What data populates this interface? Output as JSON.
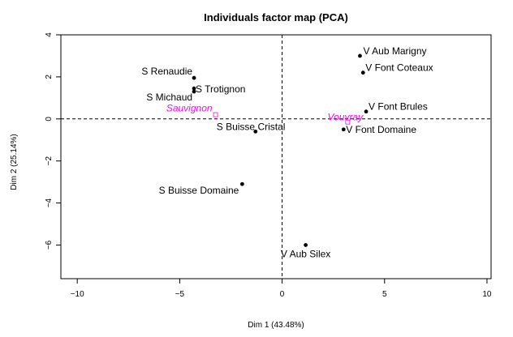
{
  "chart_data": {
    "type": "scatter",
    "title": "Individuals factor map (PCA)",
    "xlabel": "Dim 1 (43.48%)",
    "ylabel": "Dim 2 (25.14%)",
    "xlim": [
      -10.8,
      10.2
    ],
    "ylim": [
      -7.6,
      4.0
    ],
    "xticks": [
      -10,
      -5,
      0,
      5,
      10
    ],
    "yticks": [
      -6,
      -4,
      -2,
      0,
      2,
      4
    ],
    "xtick_labels": [
      "−10",
      "−5",
      "0",
      "5",
      "10"
    ],
    "ytick_labels": [
      "−6",
      "−4",
      "−2",
      "0",
      "2",
      "4"
    ],
    "grid": false,
    "reference_lines": [
      {
        "axis": "x",
        "value": 0,
        "style": "dashed"
      },
      {
        "axis": "y",
        "value": 0,
        "style": "dashed"
      }
    ],
    "individuals": [
      {
        "label": "S Renaudie",
        "x": -4.3,
        "y": 1.95
      },
      {
        "label": "S Trotignon",
        "x": -4.3,
        "y": 1.45
      },
      {
        "label": "S Michaud",
        "x": -4.3,
        "y": 1.3
      },
      {
        "label": "S Buisse Cristal",
        "x": -1.3,
        "y": -0.6
      },
      {
        "label": "S Buisse Domaine",
        "x": -1.95,
        "y": -3.1
      },
      {
        "label": "V Aub Marigny",
        "x": 3.8,
        "y": 3.0
      },
      {
        "label": "V Font Coteaux",
        "x": 3.95,
        "y": 2.2
      },
      {
        "label": "V Font Brules",
        "x": 4.1,
        "y": 0.35
      },
      {
        "label": "V Font Domaine",
        "x": 3.0,
        "y": -0.5
      },
      {
        "label": "V Aub Silex",
        "x": 1.15,
        "y": -6.0
      }
    ],
    "supplementary": [
      {
        "label": "Sauvignon",
        "x": -3.25,
        "y": 0.2
      },
      {
        "label": "Vouvray",
        "x": 3.2,
        "y": -0.15
      }
    ],
    "colors": {
      "individuals": "#000000",
      "supplementary": "#ff00ff"
    }
  }
}
